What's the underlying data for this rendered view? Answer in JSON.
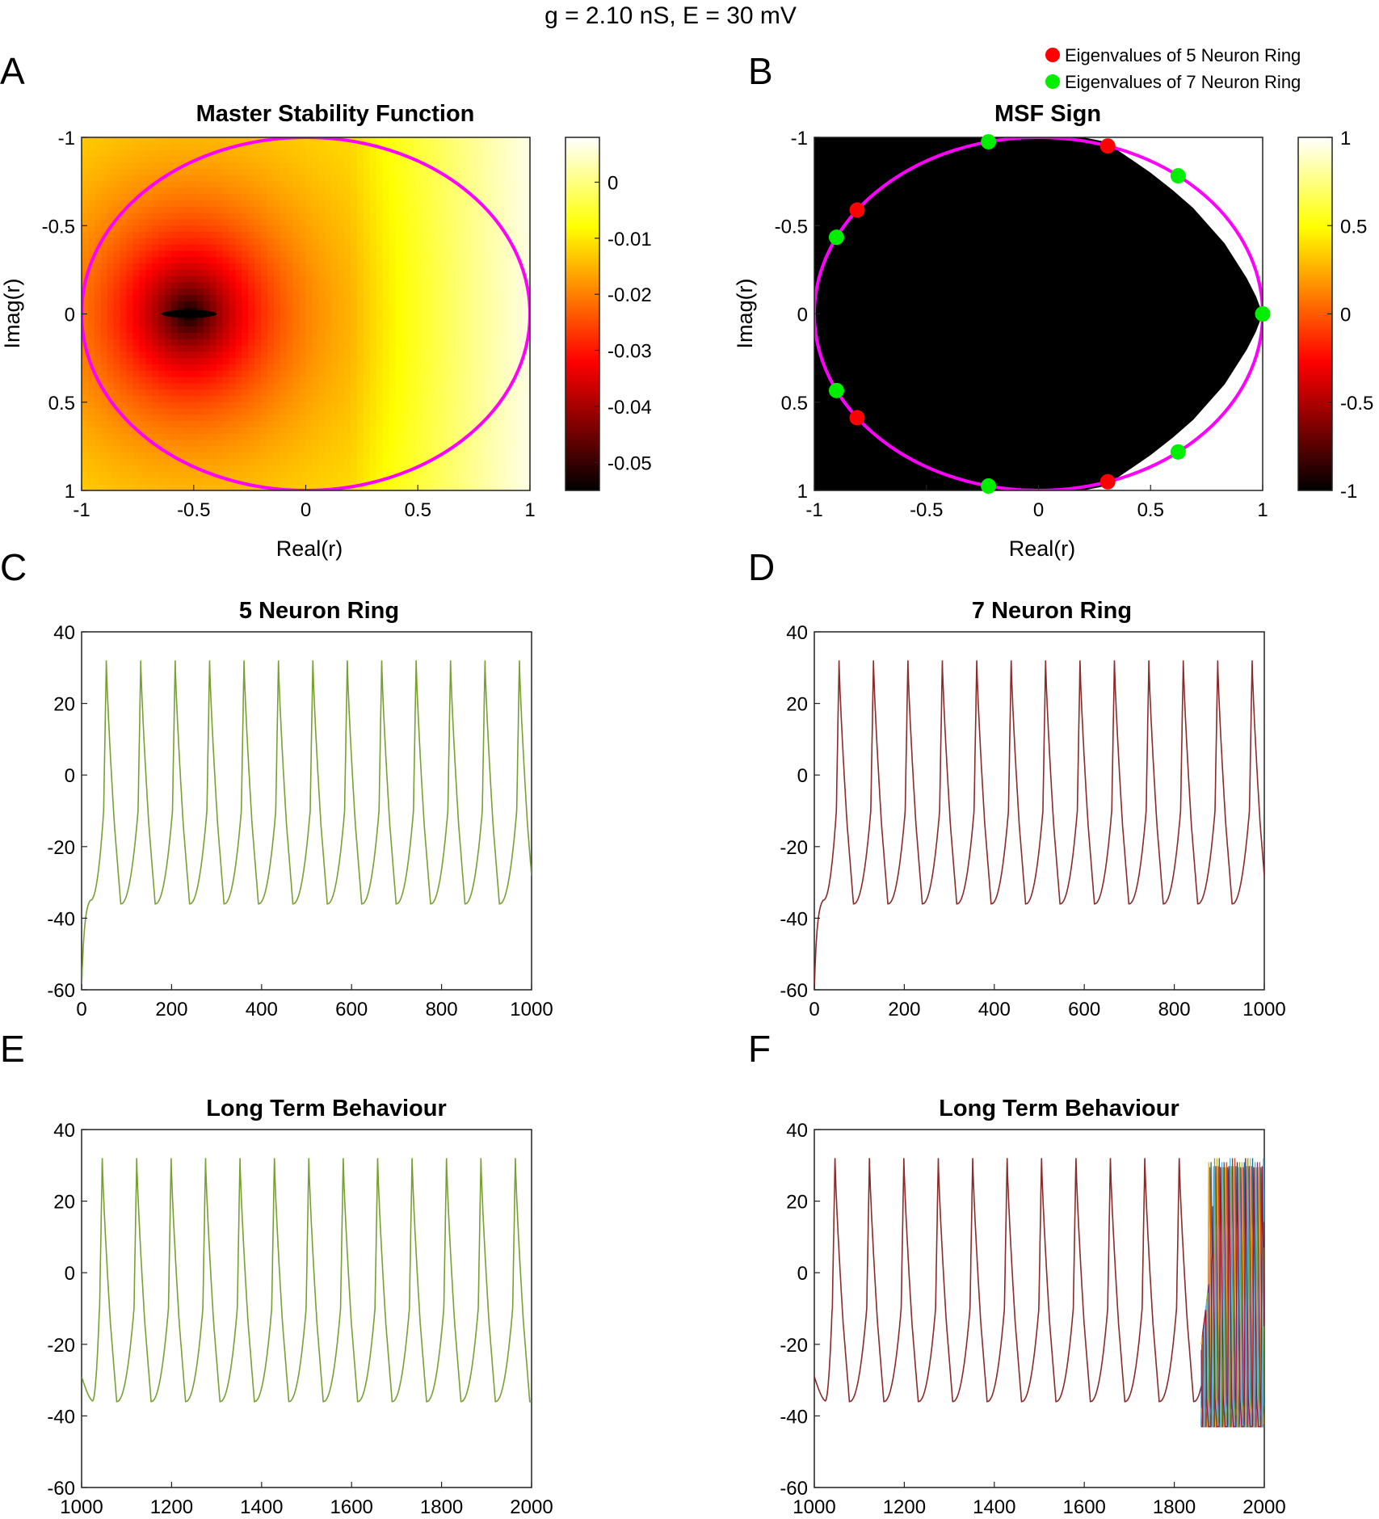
{
  "suptitle": "g = 2.10 nS, E  = 30 mV",
  "panels": {
    "A": {
      "letter": "A",
      "title": "Master Stability Function",
      "xlabel": "Real(r)",
      "ylabel": "Imag(r)"
    },
    "B": {
      "letter": "B",
      "title": "MSF Sign",
      "xlabel": "Real(r)",
      "ylabel": "Imag(r)"
    },
    "C": {
      "letter": "C",
      "title": "5 Neuron Ring"
    },
    "D": {
      "letter": "D",
      "title": "7 Neuron Ring"
    },
    "E": {
      "letter": "E",
      "title": "Long Term Behaviour"
    },
    "F": {
      "letter": "F",
      "title": "Long Term Behaviour"
    }
  },
  "legend": {
    "items": [
      {
        "label": "Eigenvalues of 5 Neuron Ring",
        "color": "#ff0000"
      },
      {
        "label": "Eigenvalues of 7 Neuron Ring",
        "color": "#00ee00"
      }
    ]
  },
  "colors": {
    "circle": "#ff00ff",
    "series5": "#77a032",
    "series7": "#8a2a2a",
    "tailColors": [
      "#0072bd",
      "#d95319",
      "#edb120",
      "#7e2f8e",
      "#77ac30",
      "#4dbeee",
      "#a2142f"
    ]
  },
  "chart_data": [
    {
      "id": "A",
      "type": "heatmap",
      "title": "Master Stability Function",
      "xlabel": "Real(r)",
      "ylabel": "Imag(r)",
      "xlim": [
        -1,
        1
      ],
      "ylim": [
        -1,
        1
      ],
      "y_direction": "reversed",
      "x_ticks": [
        -1,
        -0.5,
        0,
        0.5,
        1
      ],
      "y_ticks": [
        -1,
        -0.5,
        0,
        0.5,
        1
      ],
      "colorbar": {
        "range": [
          -0.055,
          0.008
        ],
        "ticks": [
          0,
          -0.01,
          -0.02,
          -0.03,
          -0.04,
          -0.05
        ],
        "colormap": "hot"
      },
      "minimum": {
        "x": -0.52,
        "y": 0,
        "value": -0.055
      },
      "unit_circle": true
    },
    {
      "id": "B",
      "type": "heatmap",
      "title": "MSF Sign",
      "xlabel": "Real(r)",
      "ylabel": "Imag(r)",
      "xlim": [
        -1,
        1
      ],
      "ylim": [
        -1,
        1
      ],
      "y_direction": "reversed",
      "x_ticks": [
        -1,
        -0.5,
        0,
        0.5,
        1
      ],
      "y_ticks": [
        -1,
        -0.5,
        0,
        0.5,
        1
      ],
      "colorbar": {
        "range": [
          -1,
          1
        ],
        "ticks": [
          1,
          0.5,
          0,
          -0.5,
          -1
        ],
        "colormap": "hot"
      },
      "negative_region_boundary": [
        [
          1.0,
          0.0
        ],
        [
          0.97,
          0.1
        ],
        [
          0.93,
          0.2
        ],
        [
          0.88,
          0.3
        ],
        [
          0.83,
          0.4
        ],
        [
          0.76,
          0.5
        ],
        [
          0.69,
          0.6
        ],
        [
          0.6,
          0.7
        ],
        [
          0.5,
          0.8
        ],
        [
          0.42,
          0.87
        ],
        [
          0.35,
          0.93
        ],
        [
          0.28,
          0.98
        ],
        [
          0.2,
          1.0
        ]
      ],
      "unit_circle": true,
      "eigenvalues_5": [
        [
          1,
          0
        ],
        [
          0.309,
          0.951
        ],
        [
          0.309,
          -0.951
        ],
        [
          -0.809,
          0.588
        ],
        [
          -0.809,
          -0.588
        ]
      ],
      "eigenvalues_7": [
        [
          1,
          0
        ],
        [
          0.623,
          0.782
        ],
        [
          0.623,
          -0.782
        ],
        [
          -0.223,
          0.975
        ],
        [
          -0.223,
          -0.975
        ],
        [
          -0.901,
          0.434
        ],
        [
          -0.901,
          -0.434
        ]
      ]
    },
    {
      "id": "C",
      "type": "line",
      "title": "5 Neuron Ring",
      "xlim": [
        0,
        1000
      ],
      "ylim": [
        -60,
        40
      ],
      "x_ticks": [
        0,
        200,
        400,
        600,
        800,
        1000
      ],
      "y_ticks": [
        40,
        20,
        0,
        -20,
        -40,
        -60
      ],
      "series": [
        {
          "start": -60,
          "first_spike": 55,
          "period": 76.5,
          "peak": 32,
          "trough": -36,
          "end": -27
        }
      ]
    },
    {
      "id": "D",
      "type": "line",
      "title": "7 Neuron Ring",
      "xlim": [
        0,
        1000
      ],
      "ylim": [
        -60,
        40
      ],
      "x_ticks": [
        0,
        200,
        400,
        600,
        800,
        1000
      ],
      "y_ticks": [
        40,
        20,
        0,
        -20,
        -40,
        -60
      ],
      "series": [
        {
          "start": -60,
          "first_spike": 55,
          "period": 76.5,
          "peak": 32,
          "trough": -36,
          "end": -27
        }
      ]
    },
    {
      "id": "E",
      "type": "line",
      "title": "Long Term Behaviour",
      "xlim": [
        1000,
        2000
      ],
      "ylim": [
        -60,
        40
      ],
      "x_ticks": [
        1000,
        1200,
        1400,
        1600,
        1800,
        2000
      ],
      "y_ticks": [
        40,
        20,
        0,
        -20,
        -40,
        -60
      ],
      "series": [
        {
          "start": -29,
          "first_spike": 1046,
          "period": 76.5,
          "peak": 32,
          "trough": -36,
          "end": -33
        }
      ]
    },
    {
      "id": "F",
      "type": "line",
      "title": "Long Term Behaviour",
      "xlim": [
        1000,
        2000
      ],
      "ylim": [
        -60,
        40
      ],
      "x_ticks": [
        1000,
        1200,
        1400,
        1600,
        1800,
        2000
      ],
      "y_ticks": [
        40,
        20,
        0,
        -20,
        -40,
        -60
      ],
      "series": [
        {
          "start": -29,
          "first_spike": 1046,
          "period": 76.5,
          "peak": 32,
          "trough": -36,
          "desync_at": 1860,
          "fast_period": 18.5,
          "fast_trough": -43
        }
      ]
    }
  ]
}
